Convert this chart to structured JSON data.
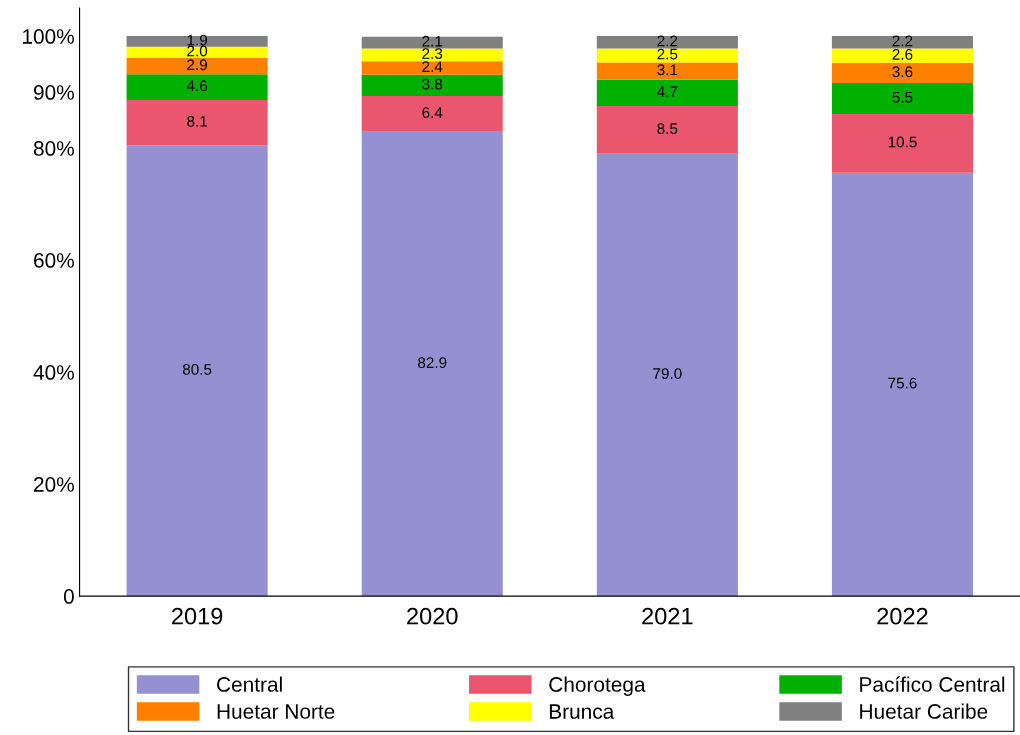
{
  "chart_data": {
    "type": "bar",
    "stacked": true,
    "categories": [
      "2019",
      "2020",
      "2021",
      "2022"
    ],
    "series": [
      {
        "name": "Central",
        "color": "#9590d1",
        "values": [
          80.5,
          82.9,
          79.0,
          75.6
        ],
        "value_labels": [
          "80.5",
          "82.9",
          "79.0",
          "75.6"
        ]
      },
      {
        "name": "Chorotega",
        "color": "#e9566e",
        "values": [
          8.1,
          6.4,
          8.5,
          10.5
        ]
      },
      {
        "name": "Pacífico Central",
        "color": "#00b000",
        "values": [
          4.6,
          3.8,
          4.7,
          5.5
        ]
      },
      {
        "name": "Huetar Norte",
        "color": "#ff8000",
        "values": [
          2.9,
          2.4,
          3.1,
          3.6
        ]
      },
      {
        "name": "Brunca",
        "color": "#ffff00",
        "values": [
          2.0,
          2.3,
          2.5,
          2.6
        ],
        "value_labels": [
          "2.0",
          "2.3",
          "2.5",
          "2.6"
        ]
      },
      {
        "name": "Huetar Caribe",
        "color": "#808080",
        "values": [
          1.9,
          2.1,
          2.2,
          2.2
        ]
      }
    ],
    "ylim": [
      0,
      105
    ],
    "yticks": [
      {
        "value": 0,
        "label": "0"
      },
      {
        "value": 20,
        "label": "20%"
      },
      {
        "value": 40,
        "label": "40%"
      },
      {
        "value": 60,
        "label": "60%"
      },
      {
        "value": 80,
        "label": "80%"
      },
      {
        "value": 90,
        "label": "90%"
      },
      {
        "value": 100,
        "label": "100%"
      }
    ],
    "data_labels": true,
    "grid": false,
    "legend": "bottom"
  }
}
